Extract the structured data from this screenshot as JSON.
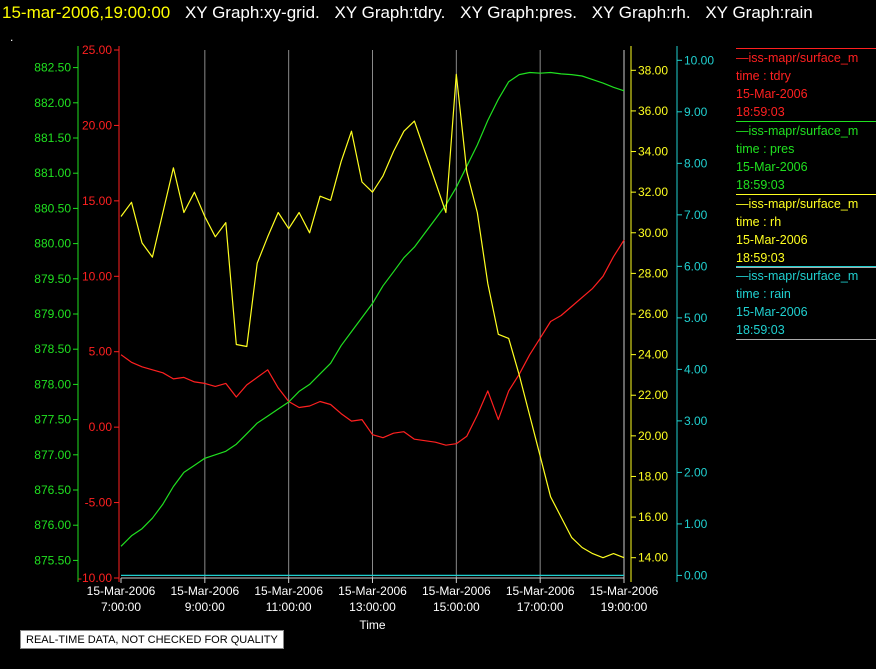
{
  "header": {
    "timestamp": "15-mar-2006,19:00:00",
    "graph_titles": [
      "XY Graph:xy-grid.",
      "XY Graph:tdry.",
      "XY Graph:pres.",
      "XY Graph:rh.",
      "XY Graph:rain"
    ],
    "marker": "."
  },
  "legend": [
    {
      "source": "—iss-mapr/surface_m",
      "field": "time : tdry",
      "date": "15-Mar-2006",
      "time": "18:59:03",
      "color": "#ff2020"
    },
    {
      "source": "—iss-mapr/surface_m",
      "field": "time : pres",
      "date": "15-Mar-2006",
      "time": "18:59:03",
      "color": "#20e020"
    },
    {
      "source": "—iss-mapr/surface_m",
      "field": "time : rh",
      "date": "15-Mar-2006",
      "time": "18:59:03",
      "color": "#ffff20"
    },
    {
      "source": "—iss-mapr/surface_m",
      "field": "time : rain",
      "date": "15-Mar-2006",
      "time": "18:59:03",
      "color": "#20d0d0"
    }
  ],
  "footnote": "REAL-TIME DATA, NOT CHECKED FOR QUALITY",
  "chart_data": {
    "type": "line",
    "xlabel": "Time",
    "x_ticks": [
      [
        "15-Mar-2006",
        "7:00:00"
      ],
      [
        "15-Mar-2006",
        "9:00:00"
      ],
      [
        "15-Mar-2006",
        "11:00:00"
      ],
      [
        "15-Mar-2006",
        "13:00:00"
      ],
      [
        "15-Mar-2006",
        "15:00:00"
      ],
      [
        "15-Mar-2006",
        "17:00:00"
      ],
      [
        "15-Mar-2006",
        "19:00:00"
      ]
    ],
    "xlim_hours": [
      7,
      19
    ],
    "grid": "vertical",
    "axes": {
      "tdry": {
        "color": "#ff2020",
        "ylim": [
          -10,
          25
        ],
        "ticks": [
          "-10.00",
          "-5.00",
          "0.00",
          "5.00",
          "10.00",
          "15.00",
          "20.00",
          "25.00"
        ]
      },
      "pres": {
        "color": "#20e020",
        "ylim": [
          875.25,
          882.75
        ],
        "ticks": [
          "875.50",
          "876.00",
          "876.50",
          "877.00",
          "877.50",
          "878.00",
          "878.50",
          "879.00",
          "879.50",
          "880.00",
          "880.50",
          "881.00",
          "881.50",
          "882.00",
          "882.50"
        ]
      },
      "rh": {
        "color": "#ffff20",
        "ylim": [
          13,
          39
        ],
        "ticks": [
          "14.00",
          "16.00",
          "18.00",
          "20.00",
          "22.00",
          "24.00",
          "26.00",
          "28.00",
          "30.00",
          "32.00",
          "34.00",
          "36.00",
          "38.00"
        ]
      },
      "rain": {
        "color": "#20d0d0",
        "ylim": [
          -0.05,
          10.2
        ],
        "ticks": [
          "0.00",
          "1.00",
          "2.00",
          "3.00",
          "4.00",
          "5.00",
          "6.00",
          "7.00",
          "8.00",
          "9.00",
          "10.00"
        ]
      }
    },
    "series": [
      {
        "axis": "tdry",
        "color": "#ff2020",
        "x": [
          7.0,
          7.25,
          7.5,
          7.75,
          8.0,
          8.25,
          8.5,
          8.75,
          9.0,
          9.25,
          9.5,
          9.75,
          10.0,
          10.25,
          10.5,
          10.75,
          11.0,
          11.25,
          11.5,
          11.75,
          12.0,
          12.25,
          12.5,
          12.75,
          13.0,
          13.25,
          13.5,
          13.75,
          14.0,
          14.25,
          14.5,
          14.75,
          15.0,
          15.25,
          15.5,
          15.75,
          16.0,
          16.25,
          16.5,
          16.75,
          17.0,
          17.25,
          17.5,
          17.75,
          18.0,
          18.25,
          18.5,
          18.75,
          19.0
        ],
        "y": [
          4.8,
          4.3,
          4.0,
          3.8,
          3.6,
          3.2,
          3.3,
          3.0,
          2.9,
          2.7,
          2.9,
          2.0,
          2.8,
          3.3,
          3.8,
          2.6,
          1.7,
          1.3,
          1.4,
          1.7,
          1.5,
          0.9,
          0.4,
          0.5,
          -0.5,
          -0.7,
          -0.4,
          -0.3,
          -0.8,
          -0.9,
          -1.0,
          -1.2,
          -1.1,
          -0.6,
          0.8,
          2.4,
          0.5,
          2.4,
          3.5,
          4.8,
          5.9,
          7.0,
          7.4,
          8.0,
          8.6,
          9.2,
          10.0,
          11.3,
          12.4
        ]
      },
      {
        "axis": "pres",
        "color": "#20e020",
        "x": [
          7.0,
          7.25,
          7.5,
          7.75,
          8.0,
          8.25,
          8.5,
          8.75,
          9.0,
          9.25,
          9.5,
          9.75,
          10.0,
          10.25,
          10.5,
          10.75,
          11.0,
          11.25,
          11.5,
          11.75,
          12.0,
          12.25,
          12.5,
          12.75,
          13.0,
          13.25,
          13.5,
          13.75,
          14.0,
          14.25,
          14.5,
          14.75,
          15.0,
          15.25,
          15.5,
          15.75,
          16.0,
          16.25,
          16.5,
          16.75,
          17.0,
          17.25,
          17.5,
          17.75,
          18.0,
          18.25,
          18.5,
          18.75,
          19.0
        ],
        "y": [
          875.7,
          875.85,
          875.95,
          876.1,
          876.3,
          876.55,
          876.75,
          876.85,
          876.95,
          877.0,
          877.05,
          877.15,
          877.3,
          877.45,
          877.55,
          877.65,
          877.75,
          877.9,
          878.0,
          878.15,
          878.3,
          878.55,
          878.75,
          878.95,
          879.15,
          879.4,
          879.6,
          879.8,
          879.95,
          880.15,
          880.35,
          880.55,
          880.8,
          881.1,
          881.4,
          881.75,
          882.05,
          882.3,
          882.4,
          882.43,
          882.42,
          882.43,
          882.41,
          882.4,
          882.38,
          882.33,
          882.28,
          882.22,
          882.17
        ]
      },
      {
        "axis": "rh",
        "color": "#ffff20",
        "x": [
          7.0,
          7.25,
          7.5,
          7.75,
          8.0,
          8.25,
          8.5,
          8.75,
          9.0,
          9.25,
          9.5,
          9.75,
          10.0,
          10.25,
          10.5,
          10.75,
          11.0,
          11.25,
          11.5,
          11.75,
          12.0,
          12.25,
          12.5,
          12.75,
          13.0,
          13.25,
          13.5,
          13.75,
          14.0,
          14.25,
          14.5,
          14.75,
          15.0,
          15.25,
          15.5,
          15.75,
          16.0,
          16.25,
          16.5,
          16.75,
          17.0,
          17.25,
          17.5,
          17.75,
          18.0,
          18.25,
          18.5,
          18.75,
          19.0
        ],
        "y": [
          30.8,
          31.5,
          29.5,
          28.8,
          31.0,
          33.2,
          31.0,
          32.0,
          30.8,
          29.8,
          30.5,
          24.5,
          24.4,
          28.5,
          29.8,
          31.0,
          30.2,
          31.0,
          30.0,
          31.8,
          31.6,
          33.5,
          35.0,
          32.5,
          32.0,
          32.8,
          34.0,
          35.0,
          35.5,
          34.0,
          32.5,
          31.0,
          37.8,
          33.0,
          31.0,
          27.5,
          25.0,
          24.8,
          23.0,
          21.0,
          19.0,
          17.0,
          16.0,
          15.0,
          14.5,
          14.2,
          14.0,
          14.2,
          14.0
        ]
      },
      {
        "axis": "rain",
        "color": "#20d0d0",
        "x": [
          7,
          19
        ],
        "y": [
          0.0,
          0.0
        ]
      }
    ]
  }
}
